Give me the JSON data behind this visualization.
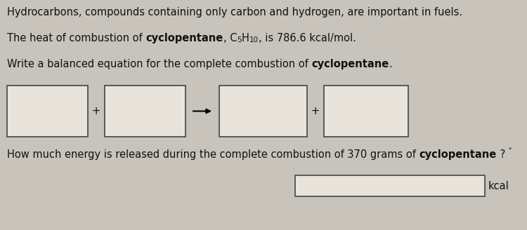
{
  "background_color": "#c8c4bc",
  "box_face_color": "#e8e4dc",
  "box_edge_color": "#444444",
  "text_color": "#111111",
  "font_size": 10.5,
  "sub_font_size": 7.5,
  "line1": "Hydrocarbons, compounds containing only carbon and hydrogen, are important in fuels.",
  "line2_prefix": "The heat of combustion of ",
  "line2_bold": "cyclopentane",
  "line2_suffix": ", is 786.6 kcal/mol.",
  "line3_prefix": "Write a balanced equation for the complete combustion of ",
  "line3_bold": "cyclopentane",
  "line3_suffix": ".",
  "line4_prefix": "How much energy is released during the complete combustion of 370 grams of ",
  "line4_bold": "cyclopentane",
  "line4_suffix": " ?",
  "kcal_label": "kcal"
}
